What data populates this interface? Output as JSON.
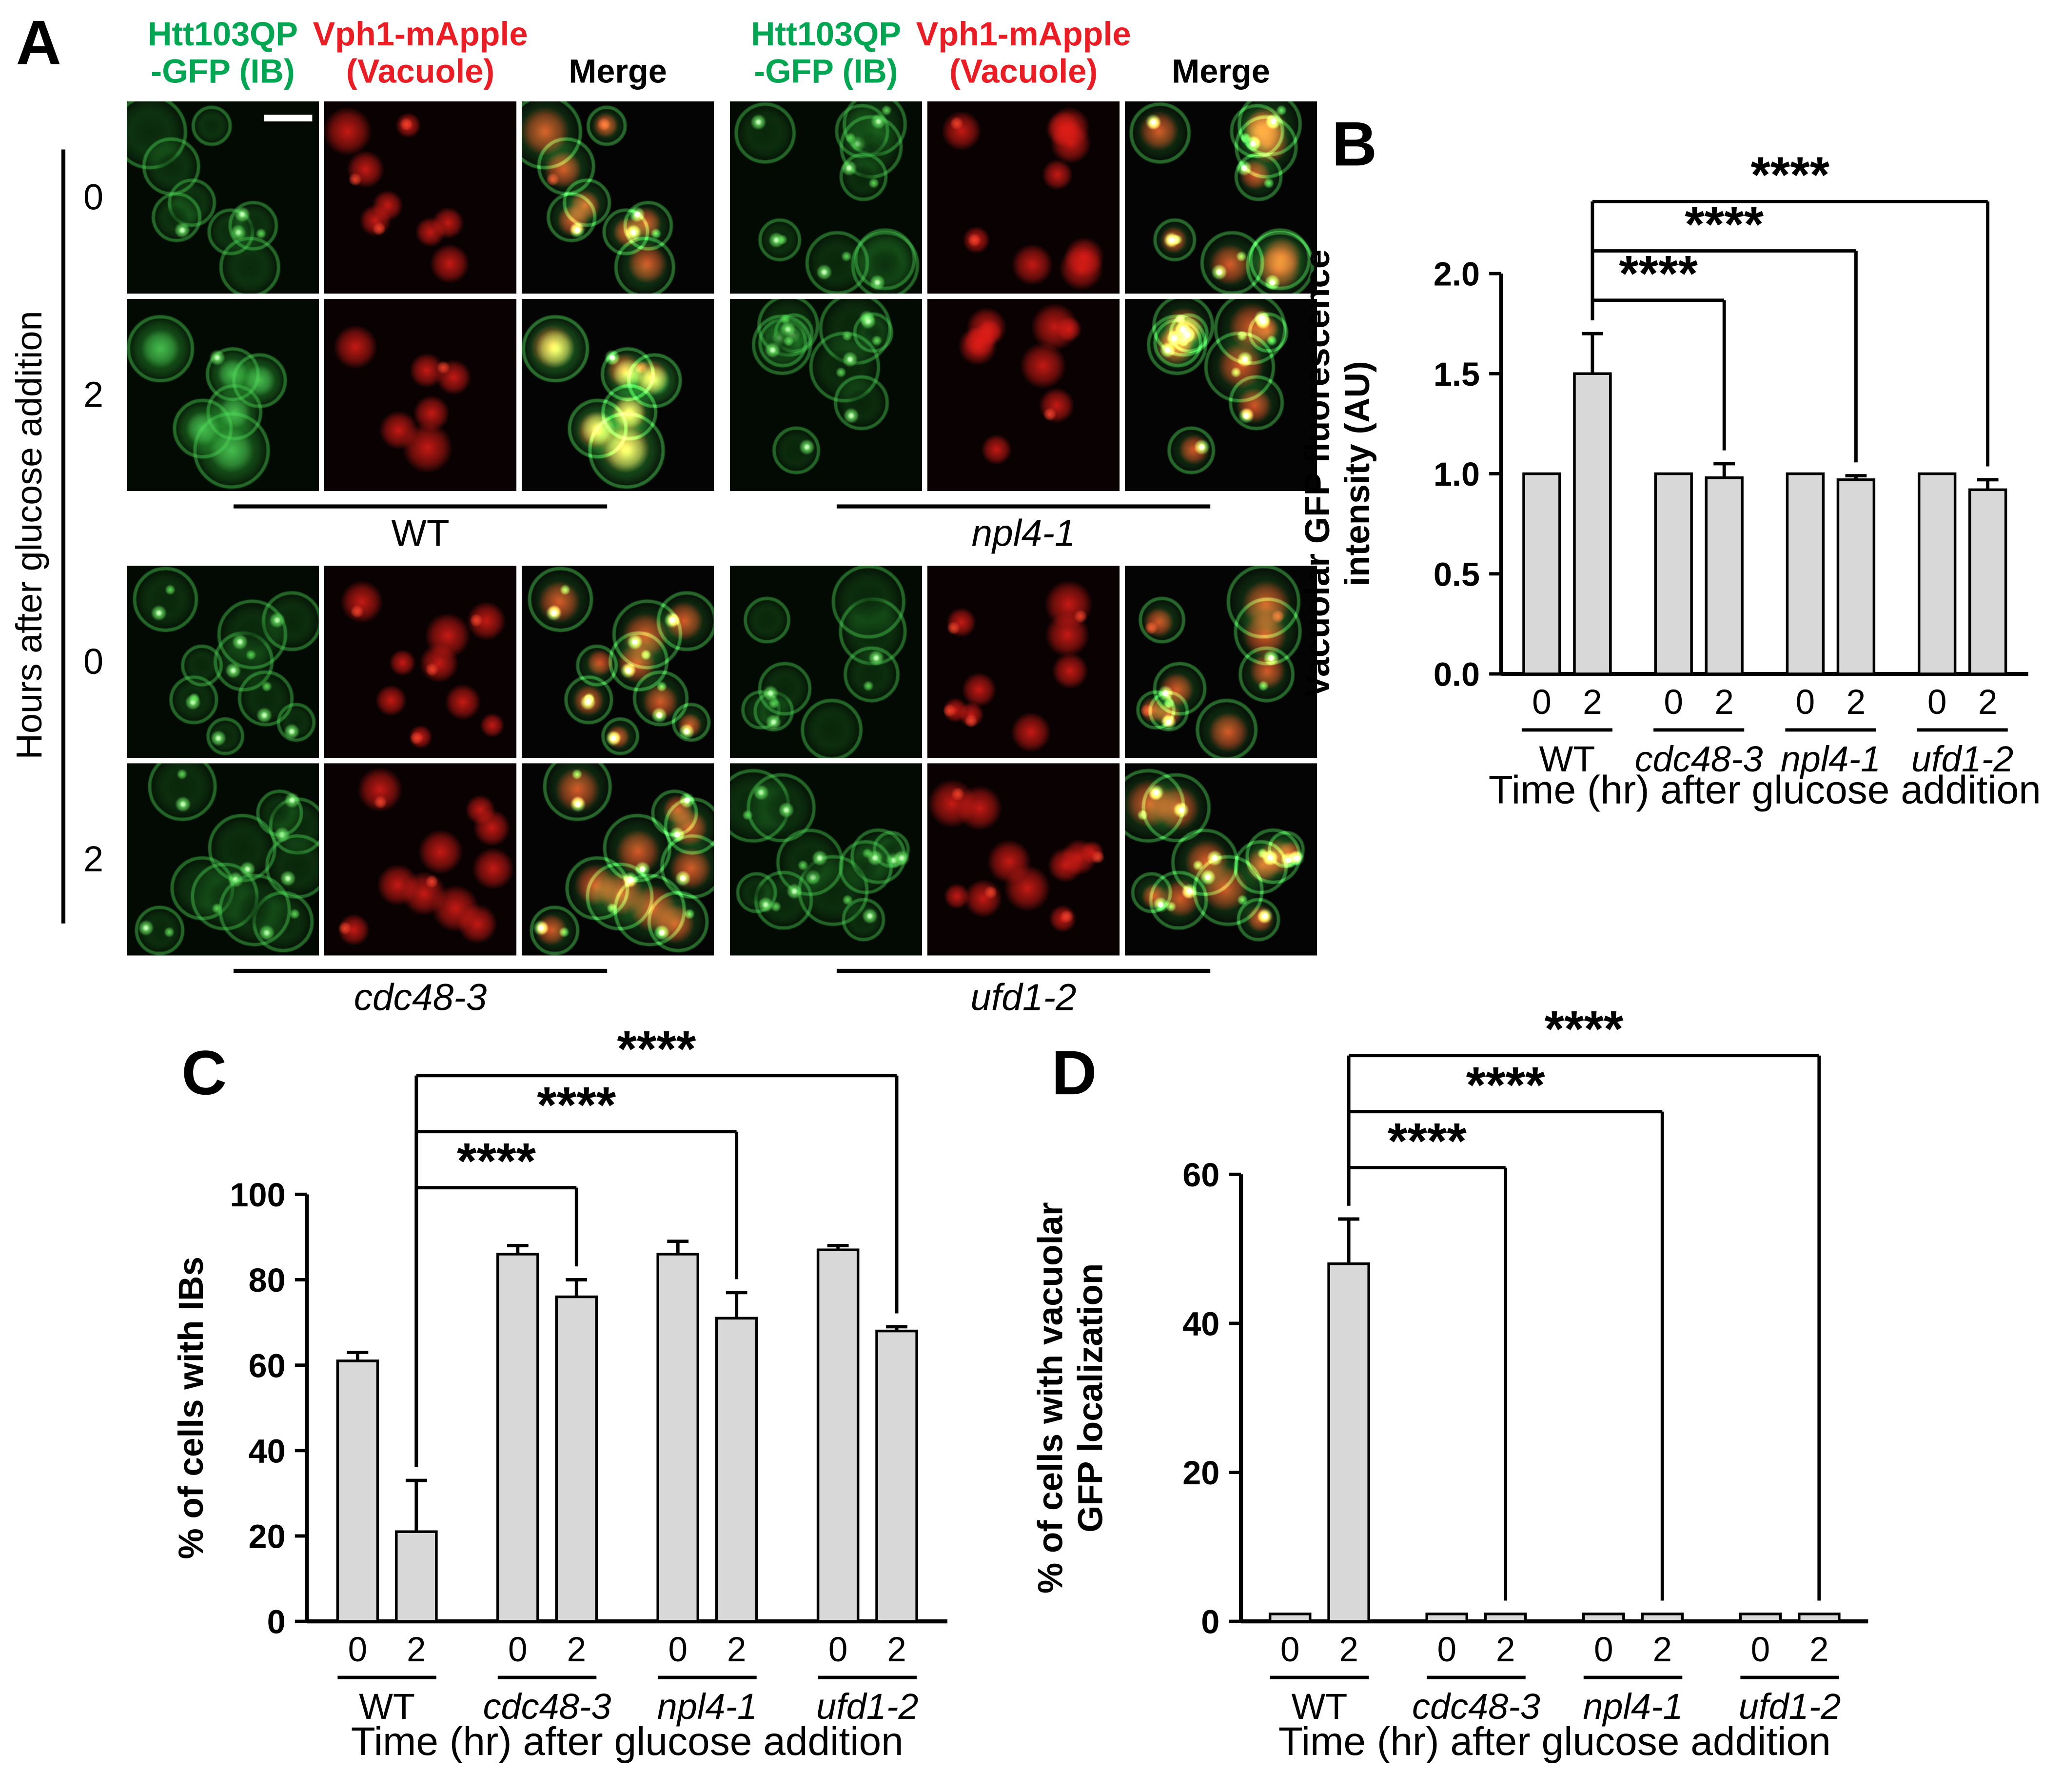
{
  "panel_labels": {
    "a": "A",
    "b": "B",
    "c": "C",
    "d": "D"
  },
  "panel_a": {
    "channel_headers": [
      {
        "line1": "Htt103QP",
        "line2": "-GFP (IB)",
        "color": "#00a651"
      },
      {
        "line1": "Vph1-mApple",
        "line2": "(Vacuole)",
        "color": "#ec1c24"
      },
      {
        "line1": "Merge",
        "line2": "",
        "color": "#000000"
      }
    ],
    "y_axis_label": "Hours after glucose addition",
    "times": [
      "0",
      "2"
    ],
    "strain_groups": [
      {
        "left": "WT",
        "right": "npl4-1"
      },
      {
        "left": "cdc48-3",
        "right": "ufd1-2"
      }
    ]
  },
  "chart_data": [
    {
      "id": "B",
      "type": "bar",
      "ylabel_lines": [
        "Vacuolar GFP fluorescence",
        "intensity (AU)"
      ],
      "xlabel": "Time (hr) after glucose addition",
      "ylim": [
        0,
        2.0
      ],
      "yticks": [
        0,
        0.5,
        1.0,
        1.5,
        2.0
      ],
      "ytick_labels": [
        "0.0",
        "0.5",
        "1.0",
        "1.5",
        "2.0"
      ],
      "bar_labels": [
        "0",
        "2"
      ],
      "bar_fill": "#d8d8d8",
      "legend": "none",
      "grid": false,
      "groups": [
        {
          "label": "WT",
          "italic": false,
          "values": [
            1.0,
            1.5
          ],
          "errors": [
            0,
            0.2
          ]
        },
        {
          "label": "cdc48-3",
          "italic": true,
          "values": [
            1.0,
            0.98
          ],
          "errors": [
            0,
            0.07
          ]
        },
        {
          "label": "npl4-1",
          "italic": true,
          "values": [
            1.0,
            0.97
          ],
          "errors": [
            0,
            0.02
          ]
        },
        {
          "label": "ufd1-2",
          "italic": true,
          "values": [
            1.0,
            0.92
          ],
          "errors": [
            0,
            0.05
          ]
        }
      ],
      "significance": [
        {
          "from": [
            "WT",
            1
          ],
          "to": [
            "cdc48-3",
            1
          ],
          "label": "****"
        },
        {
          "from": [
            "WT",
            1
          ],
          "to": [
            "npl4-1",
            1
          ],
          "label": "****"
        },
        {
          "from": [
            "WT",
            1
          ],
          "to": [
            "ufd1-2",
            1
          ],
          "label": "****"
        }
      ]
    },
    {
      "id": "C",
      "type": "bar",
      "ylabel_lines": [
        "% of cells with IBs"
      ],
      "xlabel": "Time (hr) after glucose addition",
      "ylim": [
        0,
        100
      ],
      "yticks": [
        0,
        20,
        40,
        60,
        80,
        100
      ],
      "ytick_labels": [
        "0",
        "20",
        "40",
        "60",
        "80",
        "100"
      ],
      "bar_labels": [
        "0",
        "2"
      ],
      "bar_fill": "#d8d8d8",
      "legend": "none",
      "grid": false,
      "groups": [
        {
          "label": "WT",
          "italic": false,
          "values": [
            61,
            21
          ],
          "errors": [
            2,
            12
          ]
        },
        {
          "label": "cdc48-3",
          "italic": true,
          "values": [
            86,
            76
          ],
          "errors": [
            2,
            4
          ]
        },
        {
          "label": "npl4-1",
          "italic": true,
          "values": [
            86,
            71
          ],
          "errors": [
            3,
            6
          ]
        },
        {
          "label": "ufd1-2",
          "italic": true,
          "values": [
            87,
            68
          ],
          "errors": [
            1,
            1
          ]
        }
      ],
      "significance": [
        {
          "from": [
            "WT",
            1
          ],
          "to": [
            "cdc48-3",
            1
          ],
          "label": "****"
        },
        {
          "from": [
            "WT",
            1
          ],
          "to": [
            "npl4-1",
            1
          ],
          "label": "****"
        },
        {
          "from": [
            "WT",
            1
          ],
          "to": [
            "ufd1-2",
            1
          ],
          "label": "****"
        }
      ]
    },
    {
      "id": "D",
      "type": "bar",
      "ylabel_lines": [
        "% of cells with vacuolar",
        "GFP localization"
      ],
      "xlabel": "Time (hr) after glucose addition",
      "ylim": [
        0,
        60
      ],
      "yticks": [
        0,
        20,
        40,
        60
      ],
      "ytick_labels": [
        "0",
        "20",
        "40",
        "60"
      ],
      "bar_labels": [
        "0",
        "2"
      ],
      "bar_fill": "#d8d8d8",
      "legend": "none",
      "grid": false,
      "groups": [
        {
          "label": "WT",
          "italic": false,
          "values": [
            1,
            48
          ],
          "errors": [
            0,
            6
          ]
        },
        {
          "label": "cdc48-3",
          "italic": true,
          "values": [
            1,
            1
          ],
          "errors": [
            0,
            0
          ]
        },
        {
          "label": "npl4-1",
          "italic": true,
          "values": [
            1,
            1
          ],
          "errors": [
            0,
            0
          ]
        },
        {
          "label": "ufd1-2",
          "italic": true,
          "values": [
            1,
            1
          ],
          "errors": [
            0,
            0
          ]
        }
      ],
      "significance": [
        {
          "from": [
            "WT",
            1
          ],
          "to": [
            "cdc48-3",
            1
          ],
          "label": "****"
        },
        {
          "from": [
            "WT",
            1
          ],
          "to": [
            "npl4-1",
            1
          ],
          "label": "****"
        },
        {
          "from": [
            "WT",
            1
          ],
          "to": [
            "ufd1-2",
            1
          ],
          "label": "****"
        }
      ]
    }
  ]
}
